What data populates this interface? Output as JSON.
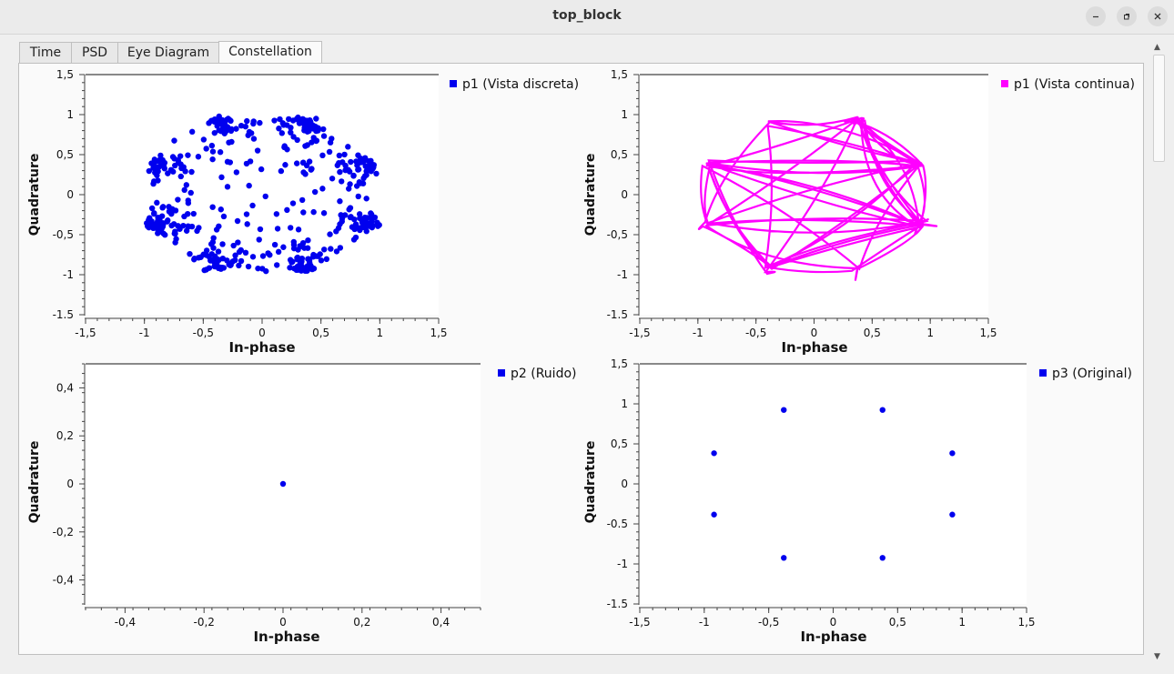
{
  "window": {
    "title": "top_block"
  },
  "tabs": [
    {
      "label": "Time",
      "active": false
    },
    {
      "label": "PSD",
      "active": false
    },
    {
      "label": "Eye Diagram",
      "active": false
    },
    {
      "label": "Constellation",
      "active": true
    }
  ],
  "colors": {
    "blue": "#0000ee",
    "magenta": "#ff00ff"
  },
  "chart_data": [
    {
      "type": "scatter",
      "legend": "p1 (Vista discreta)",
      "xlabel": "In-phase",
      "ylabel": "Quadrature",
      "xlim": [
        -1.5,
        1.5
      ],
      "ylim": [
        -1.5,
        1.5
      ],
      "xticks": [
        "-1,5",
        "-1",
        "-0,5",
        "0",
        "0,5",
        "1",
        "1,5"
      ],
      "yticks": [
        "1,5",
        "1",
        "0,5",
        "0",
        "-0,5",
        "-1",
        "-1.5"
      ],
      "color": "#0000ee",
      "description": "8-PSK symbols with noise, dense cloud on ring of radius ~1"
    },
    {
      "type": "line",
      "legend": "p1 (Vista continua)",
      "xlabel": "In-phase",
      "ylabel": "Quadrature",
      "xlim": [
        -1.5,
        1.5
      ],
      "ylim": [
        -1.5,
        1.5
      ],
      "xticks": [
        "-1,5",
        "-1",
        "-0,5",
        "0",
        "0,5",
        "1",
        "1,5"
      ],
      "yticks": [
        "1,5",
        "1",
        "0,5",
        "0",
        "-0,5",
        "-1",
        "-1.5"
      ],
      "color": "#ff00ff"
    },
    {
      "type": "scatter",
      "legend": "p2 (Ruido)",
      "xlabel": "In-phase",
      "ylabel": "Quadrature",
      "xlim": [
        -0.5,
        0.5
      ],
      "ylim": [
        -0.5,
        0.5
      ],
      "xticks": [
        "-0,4",
        "-0,2",
        "0",
        "0,2",
        "0,4"
      ],
      "yticks": [
        "0,4",
        "0,2",
        "0",
        "-0,2",
        "-0,4"
      ],
      "color": "#0000ee",
      "points": [
        [
          0,
          0
        ]
      ]
    },
    {
      "type": "scatter",
      "legend": "p3 (Original)",
      "xlabel": "In-phase",
      "ylabel": "Quadrature",
      "xlim": [
        -1.5,
        1.5
      ],
      "ylim": [
        -1.5,
        1.5
      ],
      "xticks": [
        "-1,5",
        "-1",
        "-0,5",
        "0",
        "0,5",
        "1",
        "1,5"
      ],
      "yticks": [
        "1,5",
        "1",
        "0,5",
        "0",
        "-0.5",
        "-1",
        "-1.5"
      ],
      "color": "#0000ee",
      "points": [
        [
          -0.383,
          0.924
        ],
        [
          0.383,
          0.924
        ],
        [
          -0.924,
          0.383
        ],
        [
          0.924,
          0.383
        ],
        [
          -0.924,
          -0.383
        ],
        [
          0.924,
          -0.383
        ],
        [
          -0.383,
          -0.924
        ],
        [
          0.383,
          -0.924
        ]
      ]
    }
  ]
}
